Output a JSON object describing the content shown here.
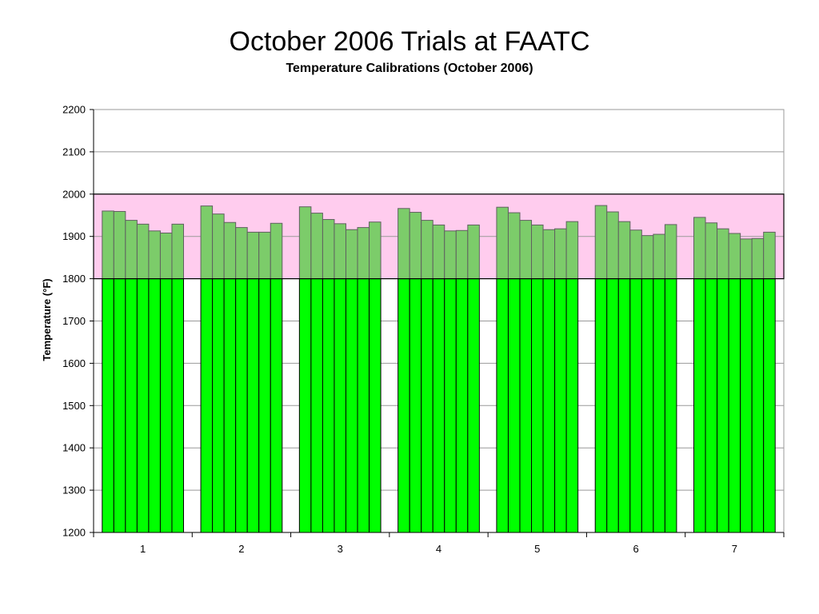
{
  "slide": {
    "title": "October 2006 Trials at FAATC"
  },
  "chart_data": {
    "type": "bar",
    "title": "Temperature Calibrations (October 2006)",
    "xlabel": "",
    "ylabel": "Temperature (°F)",
    "ylim": [
      1200,
      2200
    ],
    "yticks": [
      1200,
      1300,
      1400,
      1500,
      1600,
      1700,
      1800,
      1900,
      2000,
      2100,
      2200
    ],
    "grid": true,
    "legend": "none",
    "categories": [
      "1",
      "2",
      "3",
      "4",
      "5",
      "6",
      "7"
    ],
    "bars_per_category": 7,
    "values": [
      [
        1960,
        1959,
        1938,
        1929,
        1913,
        1908,
        1929
      ],
      [
        1972,
        1953,
        1933,
        1921,
        1910,
        1910,
        1931
      ],
      [
        1970,
        1955,
        1940,
        1930,
        1916,
        1921,
        1934
      ],
      [
        1966,
        1957,
        1938,
        1927,
        1913,
        1914,
        1927
      ],
      [
        1969,
        1956,
        1938,
        1927,
        1916,
        1918,
        1935
      ],
      [
        1973,
        1958,
        1935,
        1915,
        1902,
        1905,
        1928
      ],
      [
        1945,
        1932,
        1918,
        1907,
        1894,
        1895,
        1910
      ]
    ],
    "target_band": {
      "low": 1800,
      "high": 2000,
      "color": "#ffccee"
    },
    "colors": {
      "bar_below_band": "#00ff00",
      "bar_in_band": "#7ccc6a",
      "bar_edge": "#000000",
      "band_bar_edge": "#606060",
      "grid": "#999999",
      "plot_border": "#999999",
      "band_border": "#000000"
    }
  }
}
